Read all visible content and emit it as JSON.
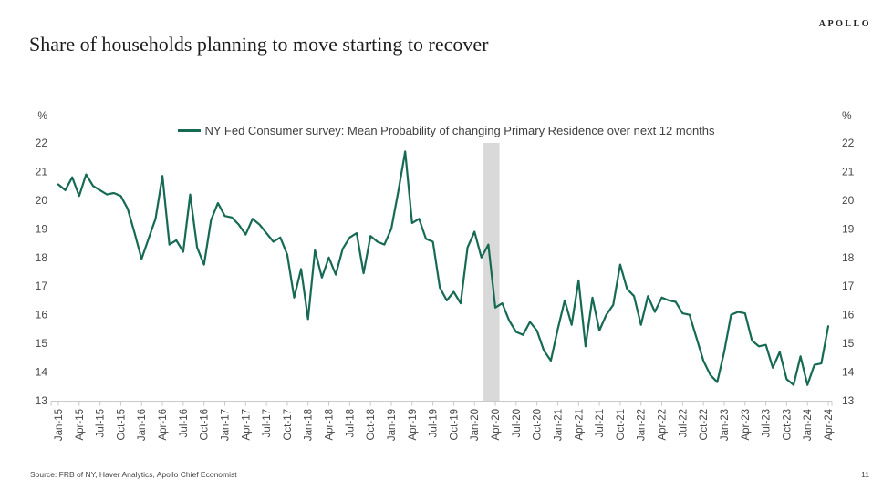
{
  "page": {
    "logo": "APOLLO",
    "title": "Share of households planning to move starting to recover",
    "source": "Source: FRB of NY, Haver Analytics, Apollo Chief Economist",
    "page_number": "11"
  },
  "colors": {
    "line": "#166a54",
    "recession_band": "#d9d9d9",
    "axis": "#c8c8c8",
    "tick_label": "#474747",
    "title_text": "#1c1c1c"
  },
  "chart_data": {
    "type": "line",
    "unit_label": "%",
    "frequency": "monthly",
    "x_start": "Jan-15",
    "x_end": "Apr-24",
    "ylim": [
      13,
      22
    ],
    "y_ticks": [
      22,
      21,
      20,
      19,
      18,
      17,
      16,
      15,
      14,
      13
    ],
    "grid": false,
    "legend_position": "top-center",
    "x_tick_labels": [
      "Jan-15",
      "Apr-15",
      "Jul-15",
      "Oct-15",
      "Jan-16",
      "Apr-16",
      "Jul-16",
      "Oct-16",
      "Jan-17",
      "Apr-17",
      "Jul-17",
      "Oct-17",
      "Jan-18",
      "Apr-18",
      "Jul-18",
      "Oct-18",
      "Jan-19",
      "Apr-19",
      "Jul-19",
      "Oct-19",
      "Jan-20",
      "Apr-20",
      "Jul-20",
      "Oct-20",
      "Jan-21",
      "Apr-21",
      "Jul-21",
      "Oct-21",
      "Jan-22",
      "Apr-22",
      "Jul-22",
      "Oct-22",
      "Jan-23",
      "Apr-23",
      "Jul-23",
      "Oct-23",
      "Jan-24",
      "Apr-24"
    ],
    "recession_band": {
      "from": "Mar-20",
      "to": "Apr-20",
      "start_month_index": 61.3,
      "end_month_index": 63.6,
      "color": "#d9d9d9"
    },
    "series": [
      {
        "name": "NY Fed Consumer survey: Mean Probability of changing Primary Residence over next 12 months",
        "color": "#166a54",
        "values": [
          20.55,
          20.35,
          20.8,
          20.15,
          20.9,
          20.5,
          20.35,
          20.2,
          20.25,
          20.15,
          19.7,
          18.85,
          17.95,
          18.65,
          19.35,
          20.85,
          18.45,
          18.6,
          18.2,
          20.2,
          18.35,
          17.75,
          19.3,
          19.9,
          19.45,
          19.4,
          19.15,
          18.8,
          19.35,
          19.15,
          18.85,
          18.55,
          18.7,
          18.1,
          16.6,
          17.6,
          15.85,
          18.25,
          17.3,
          18.0,
          17.4,
          18.3,
          18.7,
          18.85,
          17.45,
          18.75,
          18.55,
          18.45,
          19.0,
          20.3,
          21.7,
          19.2,
          19.35,
          18.65,
          18.55,
          16.95,
          16.5,
          16.8,
          16.4,
          18.35,
          18.9,
          18.0,
          18.45,
          16.25,
          16.4,
          15.8,
          15.4,
          15.3,
          15.75,
          15.45,
          14.75,
          14.4,
          15.5,
          16.5,
          15.65,
          17.2,
          14.9,
          16.6,
          15.45,
          16.0,
          16.35,
          17.75,
          16.9,
          16.65,
          15.65,
          16.65,
          16.1,
          16.6,
          16.5,
          16.45,
          16.05,
          16.0,
          15.2,
          14.4,
          13.9,
          13.65,
          14.7,
          16.0,
          16.1,
          16.05,
          15.1,
          14.9,
          14.95,
          14.15,
          14.7,
          13.75,
          13.55,
          14.55,
          13.55,
          14.25,
          14.3,
          15.6
        ]
      }
    ]
  }
}
